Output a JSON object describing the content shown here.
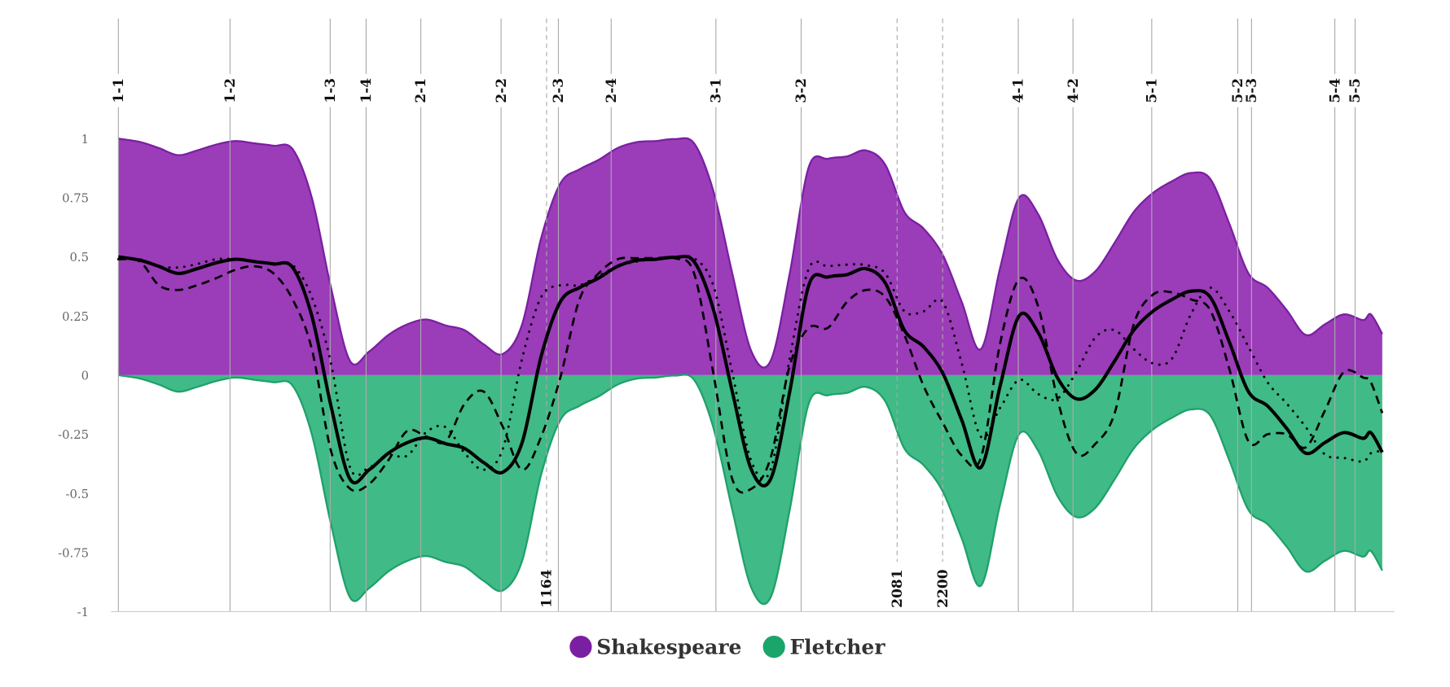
{
  "chart_data": {
    "type": "area",
    "title": "",
    "xlabel": "",
    "ylabel": "",
    "ylim": [
      -1,
      1
    ],
    "xlim": [
      44,
      3353
    ],
    "yticks": [
      "1",
      "0.75",
      "0.5",
      "0.25",
      "0",
      "-0.25",
      "-0.5",
      "-0.75",
      "-1"
    ],
    "ytick_values": [
      1,
      0.75,
      0.5,
      0.25,
      0,
      -0.25,
      -0.5,
      -0.75,
      -1
    ],
    "grid": false,
    "legend_position": "bottom-center",
    "scenes": [
      {
        "label": "1-1",
        "x": 44
      },
      {
        "label": "1-2",
        "x": 336
      },
      {
        "label": "1-3",
        "x": 598
      },
      {
        "label": "1-4",
        "x": 692
      },
      {
        "label": "2-1",
        "x": 835
      },
      {
        "label": "2-2",
        "x": 1045
      },
      {
        "label": "2-3",
        "x": 1195
      },
      {
        "label": "2-4",
        "x": 1333
      },
      {
        "label": "3-1",
        "x": 1607
      },
      {
        "label": "3-2",
        "x": 1830
      },
      {
        "label": "4-1",
        "x": 2398
      },
      {
        "label": "4-2",
        "x": 2541
      },
      {
        "label": "5-1",
        "x": 2747
      },
      {
        "label": "5-2",
        "x": 2972
      },
      {
        "label": "5-3",
        "x": 3008
      },
      {
        "label": "5-4",
        "x": 3226
      },
      {
        "label": "5-5",
        "x": 3279
      }
    ],
    "markers": [
      {
        "label": "1164",
        "x": 1164
      },
      {
        "label": "2081",
        "x": 2081
      },
      {
        "label": "2200",
        "x": 2200
      }
    ],
    "x": [
      50,
      100,
      150,
      200,
      250,
      300,
      350,
      400,
      450,
      500,
      550,
      600,
      650,
      700,
      750,
      800,
      850,
      900,
      950,
      1000,
      1050,
      1100,
      1150,
      1200,
      1250,
      1300,
      1350,
      1400,
      1450,
      1500,
      1550,
      1600,
      1650,
      1700,
      1750,
      1800,
      1850,
      1900,
      1950,
      2000,
      2050,
      2100,
      2150,
      2200,
      2250,
      2300,
      2350,
      2400,
      2450,
      2500,
      2550,
      2600,
      2650,
      2700,
      2750,
      2800,
      2850,
      2900,
      2950,
      3000,
      3050,
      3100,
      3150,
      3200,
      3250,
      3300,
      3320,
      3350
    ],
    "series": [
      {
        "name": "Shakespeare",
        "kind": "area",
        "color": "#9b3cb9",
        "stroke": "#7a1fa2",
        "values": [
          1.0,
          0.986,
          0.96,
          0.93,
          0.95,
          0.975,
          0.99,
          0.98,
          0.97,
          0.955,
          0.75,
          0.37,
          0.06,
          0.1,
          0.17,
          0.215,
          0.235,
          0.21,
          0.19,
          0.13,
          0.09,
          0.215,
          0.58,
          0.81,
          0.87,
          0.91,
          0.96,
          0.985,
          0.99,
          0.998,
          0.98,
          0.78,
          0.43,
          0.1,
          0.06,
          0.43,
          0.88,
          0.915,
          0.925,
          0.95,
          0.89,
          0.69,
          0.62,
          0.51,
          0.31,
          0.11,
          0.45,
          0.75,
          0.68,
          0.49,
          0.4,
          0.44,
          0.56,
          0.69,
          0.77,
          0.82,
          0.855,
          0.83,
          0.64,
          0.43,
          0.37,
          0.275,
          0.17,
          0.215,
          0.257,
          0.233,
          0.257,
          0.174
        ]
      },
      {
        "name": "Fletcher",
        "kind": "area",
        "color": "#40ba87",
        "stroke": "#1fa06a",
        "values": [
          0,
          -0.014,
          -0.04,
          -0.07,
          -0.05,
          -0.025,
          -0.01,
          -0.02,
          -0.03,
          -0.045,
          -0.25,
          -0.63,
          -0.94,
          -0.9,
          -0.83,
          -0.785,
          -0.765,
          -0.79,
          -0.81,
          -0.87,
          -0.91,
          -0.785,
          -0.42,
          -0.19,
          -0.13,
          -0.09,
          -0.04,
          -0.015,
          -0.01,
          -0.002,
          -0.02,
          -0.22,
          -0.57,
          -0.9,
          -0.94,
          -0.57,
          -0.12,
          -0.085,
          -0.075,
          -0.05,
          -0.11,
          -0.31,
          -0.38,
          -0.49,
          -0.69,
          -0.89,
          -0.55,
          -0.25,
          -0.32,
          -0.51,
          -0.6,
          -0.56,
          -0.44,
          -0.31,
          -0.23,
          -0.18,
          -0.145,
          -0.17,
          -0.36,
          -0.57,
          -0.63,
          -0.725,
          -0.83,
          -0.785,
          -0.743,
          -0.767,
          -0.743,
          -0.826
        ]
      },
      {
        "kind": "line",
        "style": "solid",
        "color": "#000000",
        "values": [
          0.5,
          0.486,
          0.46,
          0.43,
          0.45,
          0.475,
          0.49,
          0.48,
          0.47,
          0.455,
          0.25,
          -0.13,
          -0.44,
          -0.4,
          -0.33,
          -0.285,
          -0.265,
          -0.29,
          -0.31,
          -0.37,
          -0.41,
          -0.285,
          0.08,
          0.31,
          0.37,
          0.41,
          0.46,
          0.485,
          0.49,
          0.498,
          0.48,
          0.28,
          -0.07,
          -0.4,
          -0.44,
          -0.07,
          0.38,
          0.415,
          0.425,
          0.45,
          0.39,
          0.19,
          0.12,
          0.01,
          -0.19,
          -0.39,
          -0.05,
          0.25,
          0.18,
          -0.01,
          -0.1,
          -0.06,
          0.06,
          0.19,
          0.27,
          0.32,
          0.355,
          0.33,
          0.14,
          -0.07,
          -0.13,
          -0.225,
          -0.33,
          -0.285,
          -0.243,
          -0.267,
          -0.243,
          -0.326
        ]
      },
      {
        "kind": "line",
        "style": "dashed",
        "color": "#000000",
        "values": [
          0.49,
          0.48,
          0.38,
          0.36,
          0.38,
          0.41,
          0.445,
          0.46,
          0.43,
          0.32,
          0.11,
          -0.32,
          -0.48,
          -0.46,
          -0.36,
          -0.235,
          -0.26,
          -0.28,
          -0.12,
          -0.07,
          -0.22,
          -0.4,
          -0.26,
          -0.01,
          0.32,
          0.43,
          0.49,
          0.494,
          0.495,
          0.494,
          0.43,
          0.01,
          -0.44,
          -0.48,
          -0.35,
          0.04,
          0.2,
          0.2,
          0.31,
          0.36,
          0.33,
          0.17,
          -0.045,
          -0.2,
          -0.34,
          -0.35,
          0.13,
          0.405,
          0.29,
          -0.1,
          -0.33,
          -0.29,
          -0.16,
          0.215,
          0.34,
          0.35,
          0.32,
          0.275,
          0.026,
          -0.28,
          -0.25,
          -0.25,
          -0.305,
          -0.15,
          0.014,
          -0.01,
          -0.03,
          -0.16
        ]
      },
      {
        "kind": "line",
        "style": "dotted",
        "color": "#000000",
        "values": [
          0.49,
          0.49,
          0.46,
          0.455,
          0.47,
          0.49,
          0.49,
          0.48,
          0.47,
          0.465,
          0.33,
          0.05,
          -0.39,
          -0.39,
          -0.34,
          -0.34,
          -0.24,
          -0.22,
          -0.33,
          -0.4,
          -0.31,
          0.07,
          0.33,
          0.38,
          0.38,
          0.42,
          0.46,
          0.48,
          0.49,
          0.495,
          0.494,
          0.38,
          0.01,
          -0.365,
          -0.4,
          0.07,
          0.45,
          0.46,
          0.467,
          0.465,
          0.43,
          0.27,
          0.27,
          0.31,
          0.05,
          -0.26,
          -0.14,
          -0.02,
          -0.08,
          -0.1,
          0.014,
          0.16,
          0.19,
          0.11,
          0.05,
          0.07,
          0.26,
          0.37,
          0.27,
          0.12,
          -0.03,
          -0.12,
          -0.22,
          -0.335,
          -0.35,
          -0.365,
          -0.33,
          -0.32
        ]
      }
    ],
    "legend": [
      {
        "label": "Shakespeare",
        "color": "#7b1fa2"
      },
      {
        "label": "Fletcher",
        "color": "#1aa56a"
      }
    ]
  }
}
